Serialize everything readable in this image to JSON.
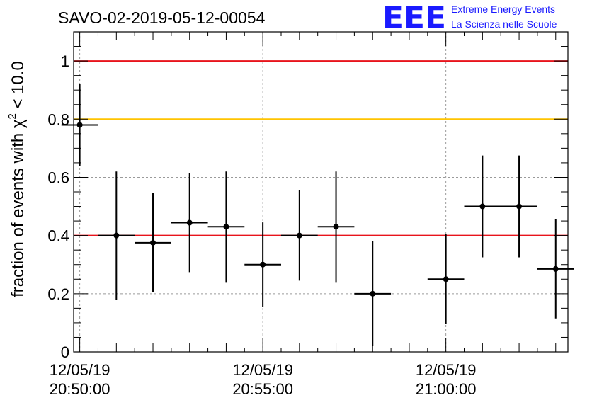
{
  "logo": {
    "letters": "EEE",
    "line1": "Extreme Energy Events",
    "line2": "La Scienza nelle Scuole"
  },
  "colors": {
    "threshold_red": "#e8141c",
    "threshold_yellow": "#ffc400",
    "points": "#000000",
    "grid": "#9a9a9a",
    "logo_blue": "#1a1aff"
  },
  "chart_data": {
    "type": "scatter",
    "title": "SAVO-02-2019-05-12-00054",
    "ylabel_main": "fraction of events with χ",
    "ylabel_sup": "2",
    "ylabel_tail": " < 10.0",
    "xlabel": "",
    "ylim": [
      0,
      1.1
    ],
    "xlim": [
      "20:49:50",
      "21:03:20"
    ],
    "grid": true,
    "yticks": [
      {
        "value": 0,
        "label": "0"
      },
      {
        "value": 0.2,
        "label": "0.2"
      },
      {
        "value": 0.4,
        "label": "0.4"
      },
      {
        "value": 0.6,
        "label": "0.6"
      },
      {
        "value": 0.8,
        "label": "0.8"
      },
      {
        "value": 1.0,
        "label": "1"
      }
    ],
    "xticks": [
      {
        "time": "20:50:00",
        "label_date": "12/05/19",
        "label_time": "20:50:00"
      },
      {
        "time": "20:55:00",
        "label_date": "12/05/19",
        "label_time": "20:55:00"
      },
      {
        "time": "21:00:00",
        "label_date": "12/05/19",
        "label_time": "21:00:00"
      }
    ],
    "threshold_lines": [
      {
        "value": 1.0,
        "color": "#e8141c"
      },
      {
        "value": 0.8,
        "color": "#ffc400"
      },
      {
        "value": 0.4,
        "color": "#e8141c"
      }
    ],
    "points": [
      {
        "x": "20:50:00",
        "y": 0.78,
        "yerr_low": 0.14,
        "yerr_high": 0.14
      },
      {
        "x": "20:51:00",
        "y": 0.4,
        "yerr_low": 0.22,
        "yerr_high": 0.22
      },
      {
        "x": "20:52:00",
        "y": 0.375,
        "yerr_low": 0.17,
        "yerr_high": 0.17
      },
      {
        "x": "20:53:00",
        "y": 0.444,
        "yerr_low": 0.17,
        "yerr_high": 0.17
      },
      {
        "x": "20:54:00",
        "y": 0.43,
        "yerr_low": 0.19,
        "yerr_high": 0.19
      },
      {
        "x": "20:55:00",
        "y": 0.3,
        "yerr_low": 0.145,
        "yerr_high": 0.145
      },
      {
        "x": "20:56:00",
        "y": 0.4,
        "yerr_low": 0.155,
        "yerr_high": 0.155
      },
      {
        "x": "20:57:00",
        "y": 0.43,
        "yerr_low": 0.19,
        "yerr_high": 0.19
      },
      {
        "x": "20:58:00",
        "y": 0.2,
        "yerr_low": 0.18,
        "yerr_high": 0.18
      },
      {
        "x": "21:00:00",
        "y": 0.25,
        "yerr_low": 0.155,
        "yerr_high": 0.155
      },
      {
        "x": "21:01:00",
        "y": 0.5,
        "yerr_low": 0.175,
        "yerr_high": 0.175
      },
      {
        "x": "21:02:00",
        "y": 0.5,
        "yerr_low": 0.175,
        "yerr_high": 0.175
      },
      {
        "x": "21:03:00",
        "y": 0.285,
        "yerr_low": 0.17,
        "yerr_high": 0.17
      }
    ],
    "x_bin_width_seconds": 60
  }
}
